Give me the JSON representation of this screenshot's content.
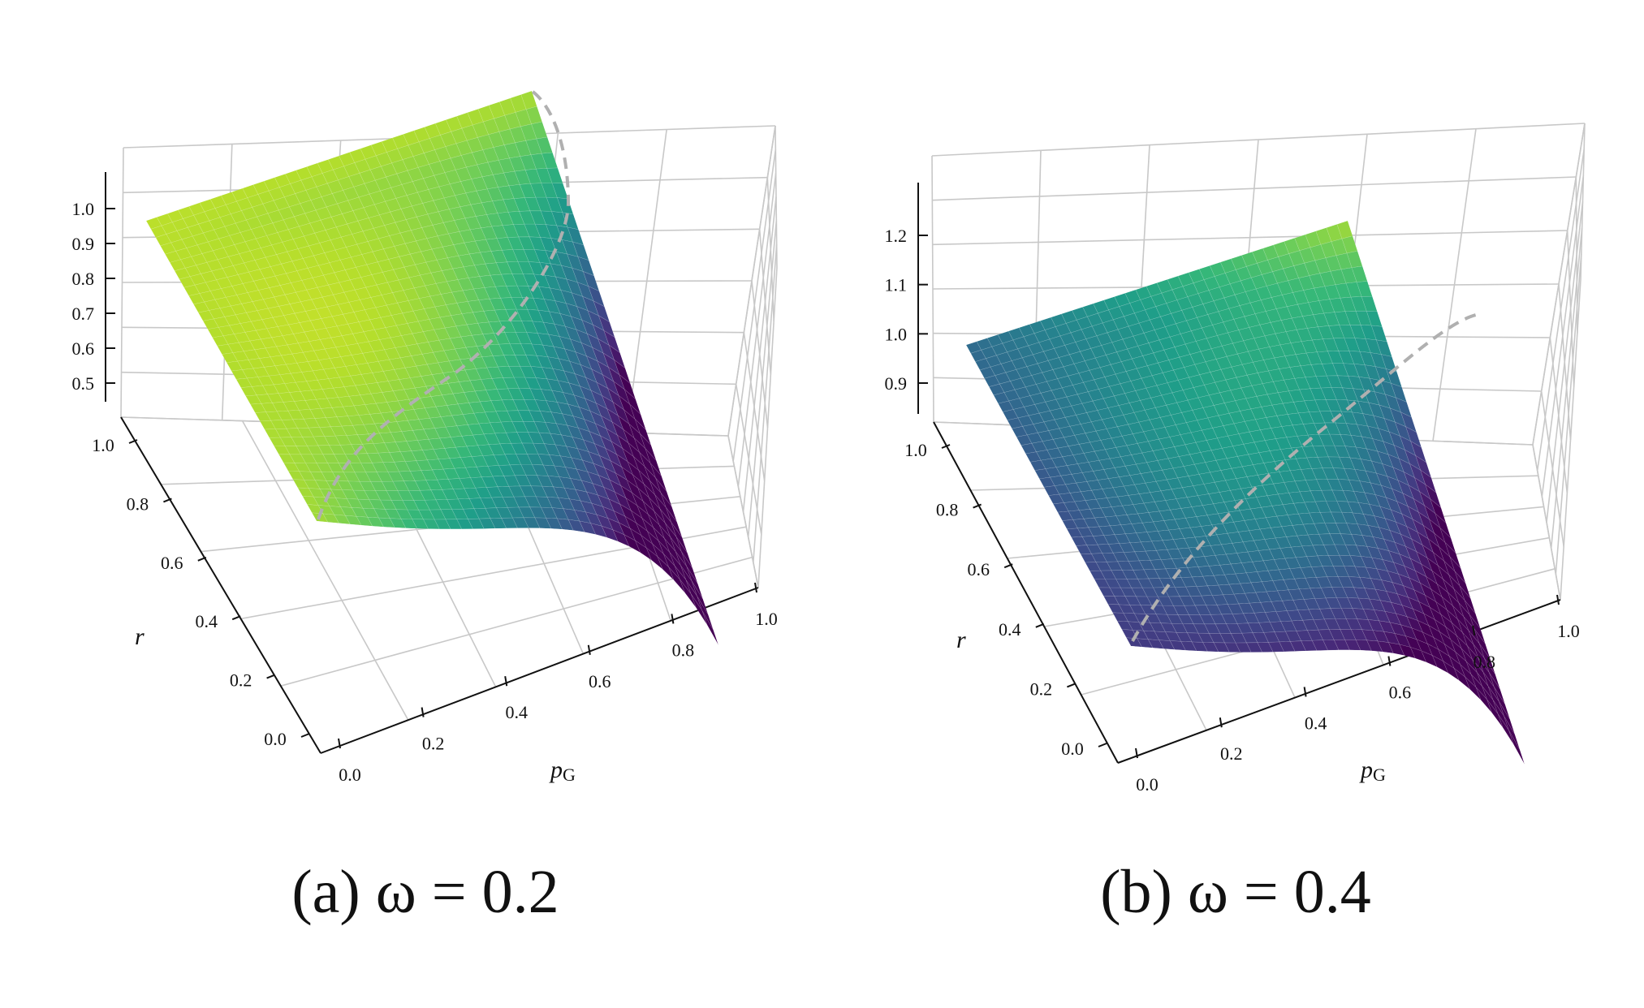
{
  "figure": {
    "panels": [
      {
        "caption": "(a) ω = 0.2",
        "chart_data": {
          "type": "surface",
          "colormap": "viridis",
          "omega": 0.2,
          "xlabel": "p",
          "xlabel_sub": "G",
          "ylabel": "r",
          "x_ticks": [
            "0.0",
            "0.2",
            "0.4",
            "0.6",
            "0.8",
            "1.0"
          ],
          "y_ticks": [
            "0.0",
            "0.2",
            "0.4",
            "0.6",
            "0.8",
            "1.0"
          ],
          "z_ticks": [
            "0.5",
            "0.6",
            "0.7",
            "0.8",
            "0.9",
            "1.0"
          ],
          "xlim": [
            0,
            1
          ],
          "ylim": [
            0,
            1
          ],
          "zlim": [
            0.45,
            1.05
          ],
          "grid": true,
          "ridge_line": "dashed, gray",
          "corner_values": {
            "p0_r0": 0.97,
            "p0_r1": 0.99,
            "p1_r1": 0.98,
            "p1_r0": 0.45
          }
        }
      },
      {
        "caption": "(b) ω = 0.4",
        "chart_data": {
          "type": "surface",
          "colormap": "viridis",
          "omega": 0.4,
          "xlabel": "p",
          "xlabel_sub": "G",
          "ylabel": "r",
          "x_ticks": [
            "0.0",
            "0.2",
            "0.4",
            "0.6",
            "0.8",
            "1.0"
          ],
          "y_ticks": [
            "0.0",
            "0.2",
            "0.4",
            "0.6",
            "0.8",
            "1.0"
          ],
          "z_ticks": [
            "0.9",
            "1.0",
            "1.1",
            "1.2"
          ],
          "xlim": [
            0,
            1
          ],
          "ylim": [
            0,
            1
          ],
          "zlim": [
            0.82,
            1.28
          ],
          "grid": true,
          "ridge_line": "dashed, gray",
          "corner_values": {
            "p0_r0": 0.9,
            "p0_r1": 0.98,
            "p1_r1": 1.22,
            "p1_r0": 0.85
          }
        }
      }
    ]
  }
}
